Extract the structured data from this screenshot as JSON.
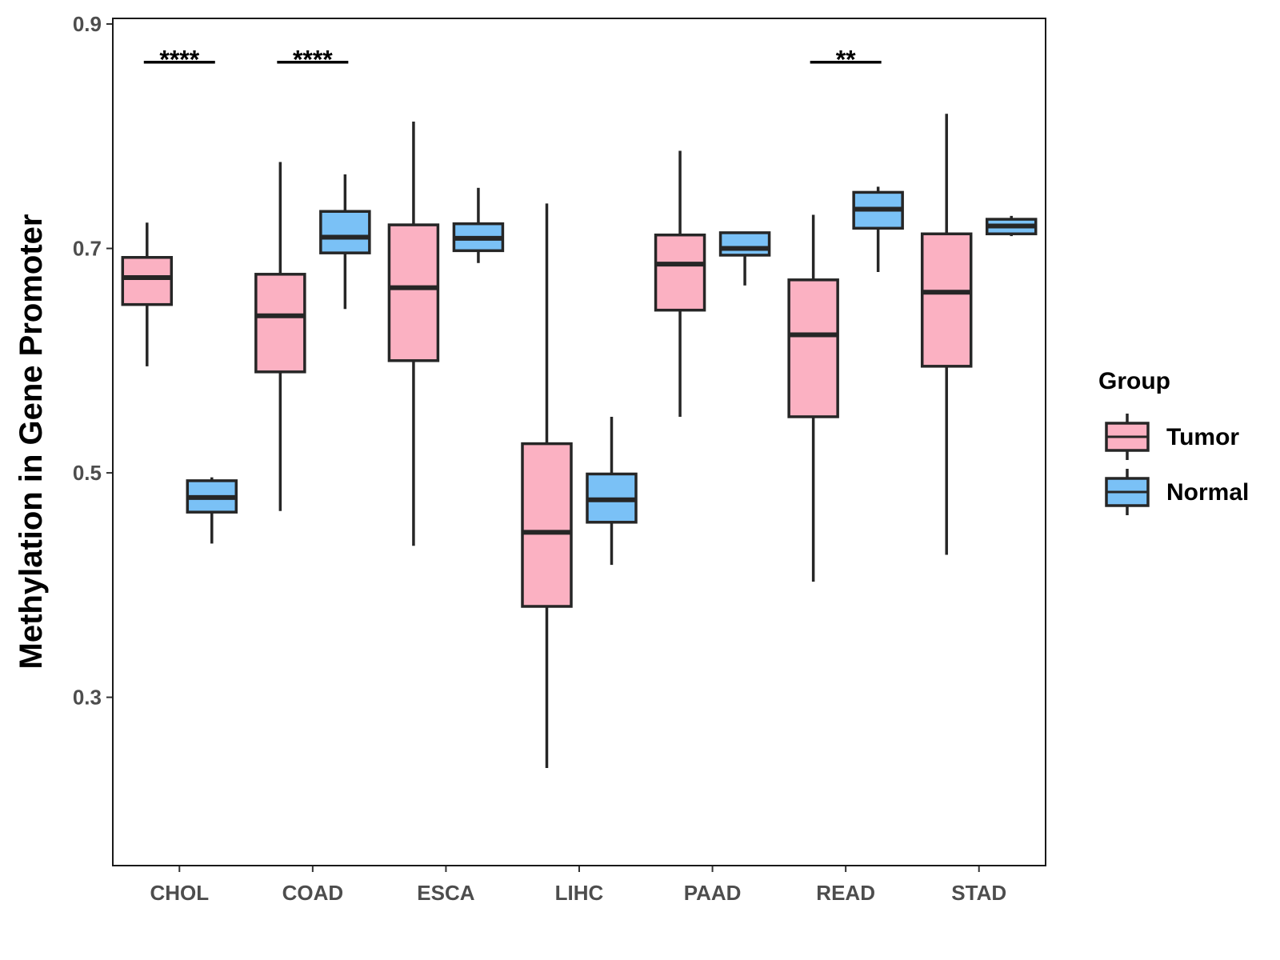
{
  "chart_data": {
    "type": "boxplot",
    "title": "",
    "xlabel": "",
    "ylabel": "Methylation in Gene Promoter",
    "ylim": [
      0.15,
      0.905
    ],
    "yticks": [
      0.3,
      0.5,
      0.7,
      0.9
    ],
    "ytick_labels": [
      "0.3",
      "0.5",
      "0.7",
      "0.9"
    ],
    "categories": [
      "CHOL",
      "COAD",
      "ESCA",
      "LIHC",
      "PAAD",
      "READ",
      "STAD"
    ],
    "legend": {
      "title": "Group",
      "position": "right",
      "entries": [
        {
          "name": "Tumor",
          "color": "#fbb1c2"
        },
        {
          "name": "Normal",
          "color": "#7ac1f6"
        }
      ]
    },
    "series": [
      {
        "name": "Tumor",
        "color": "#fbb1c2",
        "boxes": [
          {
            "category": "CHOL",
            "whisker_low": 0.595,
            "q1": 0.65,
            "median": 0.674,
            "q3": 0.692,
            "whisker_high": 0.723
          },
          {
            "category": "COAD",
            "whisker_low": 0.466,
            "q1": 0.59,
            "median": 0.64,
            "q3": 0.677,
            "whisker_high": 0.777
          },
          {
            "category": "ESCA",
            "whisker_low": 0.435,
            "q1": 0.6,
            "median": 0.665,
            "q3": 0.721,
            "whisker_high": 0.813
          },
          {
            "category": "LIHC",
            "whisker_low": 0.237,
            "q1": 0.381,
            "median": 0.447,
            "q3": 0.526,
            "whisker_high": 0.74
          },
          {
            "category": "PAAD",
            "whisker_low": 0.55,
            "q1": 0.645,
            "median": 0.686,
            "q3": 0.712,
            "whisker_high": 0.787
          },
          {
            "category": "READ",
            "whisker_low": 0.403,
            "q1": 0.55,
            "median": 0.623,
            "q3": 0.672,
            "whisker_high": 0.73
          },
          {
            "category": "STAD",
            "whisker_low": 0.427,
            "q1": 0.595,
            "median": 0.661,
            "q3": 0.713,
            "whisker_high": 0.82
          }
        ]
      },
      {
        "name": "Normal",
        "color": "#7ac1f6",
        "boxes": [
          {
            "category": "CHOL",
            "whisker_low": 0.437,
            "q1": 0.465,
            "median": 0.478,
            "q3": 0.493,
            "whisker_high": 0.496
          },
          {
            "category": "COAD",
            "whisker_low": 0.646,
            "q1": 0.696,
            "median": 0.71,
            "q3": 0.733,
            "whisker_high": 0.766
          },
          {
            "category": "ESCA",
            "whisker_low": 0.687,
            "q1": 0.698,
            "median": 0.709,
            "q3": 0.722,
            "whisker_high": 0.754
          },
          {
            "category": "LIHC",
            "whisker_low": 0.418,
            "q1": 0.456,
            "median": 0.476,
            "q3": 0.499,
            "whisker_high": 0.55
          },
          {
            "category": "PAAD",
            "whisker_low": 0.667,
            "q1": 0.694,
            "median": 0.7,
            "q3": 0.714,
            "whisker_high": 0.715
          },
          {
            "category": "READ",
            "whisker_low": 0.679,
            "q1": 0.718,
            "median": 0.735,
            "q3": 0.75,
            "whisker_high": 0.755
          },
          {
            "category": "STAD",
            "whisker_low": 0.711,
            "q1": 0.713,
            "median": 0.72,
            "q3": 0.726,
            "whisker_high": 0.729
          }
        ]
      }
    ],
    "annotations": [
      {
        "category": "CHOL",
        "text": "****",
        "y": 0.866
      },
      {
        "category": "COAD",
        "text": "****",
        "y": 0.866
      },
      {
        "category": "READ",
        "text": "**",
        "y": 0.866
      }
    ]
  }
}
